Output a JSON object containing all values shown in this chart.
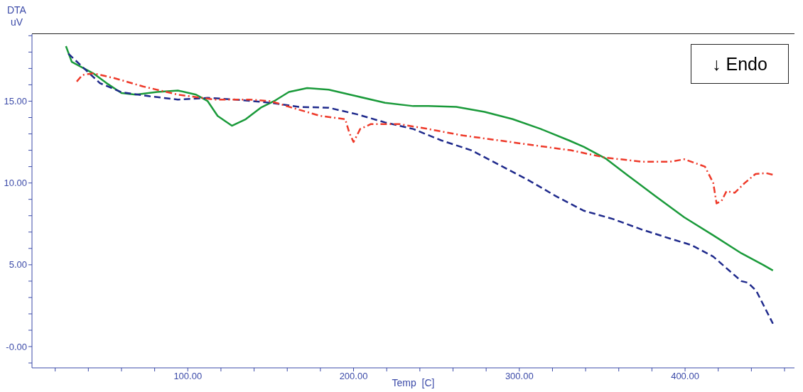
{
  "chart_data": {
    "type": "line",
    "xlabel": "Temp  [C]",
    "ylabel": "DTA\nuV",
    "annotations": [
      "↓ Endo"
    ],
    "grid": false,
    "legend": false,
    "marker": "none",
    "xlim": [
      6,
      466
    ],
    "ylim": [
      -1.3,
      19.1
    ],
    "xticks": [
      {
        "value": 20,
        "label": null
      },
      {
        "value": 40,
        "label": null
      },
      {
        "value": 60,
        "label": null
      },
      {
        "value": 80,
        "label": null
      },
      {
        "value": 100,
        "label": "100.00"
      },
      {
        "value": 120,
        "label": null
      },
      {
        "value": 140,
        "label": null
      },
      {
        "value": 160,
        "label": null
      },
      {
        "value": 180,
        "label": null
      },
      {
        "value": 200,
        "label": "200.00"
      },
      {
        "value": 220,
        "label": null
      },
      {
        "value": 240,
        "label": null
      },
      {
        "value": 260,
        "label": null
      },
      {
        "value": 280,
        "label": null
      },
      {
        "value": 300,
        "label": "300.00"
      },
      {
        "value": 320,
        "label": null
      },
      {
        "value": 340,
        "label": null
      },
      {
        "value": 360,
        "label": null
      },
      {
        "value": 380,
        "label": null
      },
      {
        "value": 400,
        "label": "400.00"
      },
      {
        "value": 420,
        "label": null
      },
      {
        "value": 440,
        "label": null
      },
      {
        "value": 460,
        "label": null
      }
    ],
    "yticks": [
      {
        "value": -1,
        "label": null
      },
      {
        "value": 0,
        "label": "-0.00"
      },
      {
        "value": 1,
        "label": null
      },
      {
        "value": 2,
        "label": null
      },
      {
        "value": 3,
        "label": null
      },
      {
        "value": 4,
        "label": null
      },
      {
        "value": 5,
        "label": "5.00"
      },
      {
        "value": 6,
        "label": null
      },
      {
        "value": 7,
        "label": null
      },
      {
        "value": 8,
        "label": null
      },
      {
        "value": 9,
        "label": null
      },
      {
        "value": 10,
        "label": "10.00"
      },
      {
        "value": 11,
        "label": null
      },
      {
        "value": 12,
        "label": null
      },
      {
        "value": 13,
        "label": null
      },
      {
        "value": 14,
        "label": null
      },
      {
        "value": 15,
        "label": "15.00"
      },
      {
        "value": 16,
        "label": null
      },
      {
        "value": 17,
        "label": null
      },
      {
        "value": 18,
        "label": null
      },
      {
        "value": 19,
        "label": null
      }
    ],
    "series": [
      {
        "color": "#1a9a3a",
        "line_style": "solid",
        "x": [
          26.5,
          30,
          43,
          51,
          60,
          68.6,
          81.5,
          94,
          105,
          112,
          118,
          126.6,
          135,
          144,
          152,
          161,
          172,
          185,
          202,
          219,
          236,
          245,
          262,
          279,
          296,
          313,
          330,
          339,
          352,
          365,
          382,
          399.5,
          417,
          434,
          447,
          453
        ],
        "values": [
          18.36,
          17.4,
          16.7,
          16.1,
          15.5,
          15.4,
          15.56,
          15.65,
          15.4,
          15.0,
          14.1,
          13.5,
          13.9,
          14.6,
          15.0,
          15.56,
          15.8,
          15.7,
          15.3,
          14.9,
          14.7,
          14.7,
          14.65,
          14.35,
          13.9,
          13.3,
          12.6,
          12.2,
          11.5,
          10.5,
          9.2,
          7.9,
          6.8,
          5.7,
          5.0,
          4.65
        ]
      },
      {
        "color": "#1f2a8c",
        "line_style": "dashed",
        "x": [
          28,
          38.5,
          47,
          60,
          77,
          94,
          112,
          129,
          150,
          167,
          185,
          202,
          219,
          236,
          253,
          271,
          288,
          305,
          322,
          339,
          356.5,
          374,
          391,
          404,
          417,
          426,
          434,
          438,
          443,
          453
        ],
        "values": [
          17.9,
          16.9,
          16.1,
          15.55,
          15.3,
          15.1,
          15.2,
          15.1,
          14.9,
          14.65,
          14.6,
          14.2,
          13.7,
          13.3,
          12.6,
          12.0,
          11.1,
          10.2,
          9.2,
          8.3,
          7.8,
          7.15,
          6.6,
          6.2,
          5.5,
          4.7,
          4.0,
          3.9,
          3.4,
          1.4
        ]
      },
      {
        "color": "#ee3a2a",
        "line_style": "dashdot",
        "x": [
          33,
          36.4,
          43,
          56,
          73,
          94,
          116,
          137,
          150,
          163,
          180,
          195,
          197.5,
          200,
          204,
          210.5,
          227.6,
          245,
          266,
          288,
          309,
          331,
          352,
          374,
          391,
          399.5,
          412,
          417,
          419,
          422,
          425,
          430,
          436,
          442.5,
          449,
          453
        ],
        "values": [
          16.2,
          16.6,
          16.7,
          16.4,
          15.9,
          15.4,
          15.1,
          15.1,
          15.0,
          14.6,
          14.1,
          13.9,
          13.05,
          12.5,
          13.3,
          13.6,
          13.6,
          13.3,
          12.9,
          12.6,
          12.3,
          12.0,
          11.55,
          11.3,
          11.3,
          11.45,
          11.0,
          10.0,
          8.75,
          8.9,
          9.5,
          9.4,
          10.0,
          10.55,
          10.6,
          10.5
        ]
      }
    ]
  }
}
